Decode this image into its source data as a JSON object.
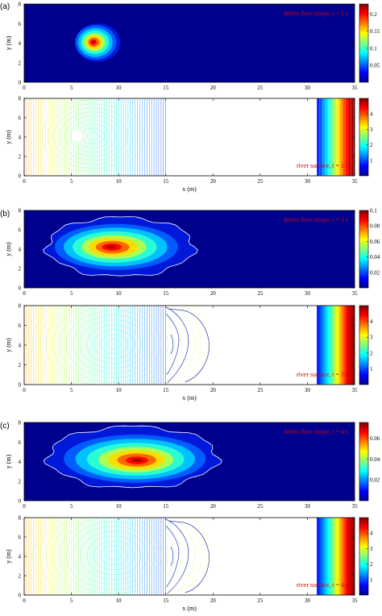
{
  "chart_data": [
    {
      "panel": "(a)",
      "type": "heatmap",
      "annotation": "debris flow shape, t = 1 s",
      "xlabel": "",
      "ylabel": "y (m)",
      "xlim": [
        0,
        35
      ],
      "ylim": [
        0,
        8
      ],
      "xticks": [
        "0",
        "5",
        "10",
        "15",
        "20",
        "25",
        "30",
        "35"
      ],
      "yticks": [
        "0",
        "2",
        "4",
        "6",
        "8"
      ],
      "colorbar": {
        "min": 0,
        "max": 0.23,
        "ticks": [
          "0.2",
          "0.15",
          "0.1",
          "0.05"
        ],
        "tick_values": [
          0.2,
          0.15,
          0.1,
          0.05
        ]
      },
      "blob": {
        "cx": 7.3,
        "cy": 4.1,
        "peak": 0.23,
        "outline_x": [
          5.4,
          10.2
        ],
        "outline_y": [
          2.1,
          6.0
        ]
      }
    },
    {
      "panel": "(a)",
      "type": "contour",
      "annotation": "river surface, t = 1 s",
      "xlabel": "x (m)",
      "ylabel": "y (m)",
      "xlim": [
        0,
        35
      ],
      "ylim": [
        0,
        8
      ],
      "xticks": [
        "0",
        "5",
        "10",
        "15",
        "20",
        "25",
        "30",
        "35"
      ],
      "yticks": [
        "0",
        "2",
        "4",
        "6",
        "8"
      ],
      "colorbar": {
        "min": 0,
        "max": 5,
        "ticks": [
          "4",
          "3",
          "2",
          "1"
        ],
        "tick_values": [
          4,
          3,
          2,
          1
        ]
      },
      "wet_region_x": [
        0,
        15
      ],
      "uniform_region_x": [
        31,
        35
      ]
    },
    {
      "panel": "(b)",
      "type": "heatmap",
      "annotation": "debris flow shape, t = 3 s",
      "xlabel": "",
      "ylabel": "y (m)",
      "xlim": [
        0,
        35
      ],
      "ylim": [
        0,
        8
      ],
      "xticks": [
        "0",
        "5",
        "10",
        "15",
        "20",
        "25",
        "30",
        "35"
      ],
      "yticks": [
        "0",
        "2",
        "4",
        "6",
        "8"
      ],
      "colorbar": {
        "min": 0,
        "max": 0.1,
        "ticks": [
          "0.1",
          "0.08",
          "0.06",
          "0.04",
          "0.02"
        ],
        "tick_values": [
          0.1,
          0.08,
          0.06,
          0.04,
          0.02
        ]
      },
      "blob": {
        "cx": 9.2,
        "cy": 4.2,
        "peak": 0.1,
        "outline_x": [
          2.4,
          18.0
        ],
        "outline_y": [
          1.2,
          7.3
        ]
      }
    },
    {
      "panel": "(b)",
      "type": "contour",
      "annotation": "river surface, t = 3 s",
      "xlabel": "x (m)",
      "ylabel": "y (m)",
      "xlim": [
        0,
        35
      ],
      "ylim": [
        0,
        8
      ],
      "xticks": [
        "0",
        "5",
        "10",
        "15",
        "20",
        "25",
        "30",
        "35"
      ],
      "yticks": [
        "0",
        "2",
        "4",
        "6",
        "8"
      ],
      "colorbar": {
        "min": 0,
        "max": 5,
        "ticks": [
          "4",
          "3",
          "2",
          "1"
        ],
        "tick_values": [
          4,
          3,
          2,
          1
        ]
      },
      "wet_region_x": [
        0,
        15
      ],
      "uniform_region_x": [
        31,
        35
      ]
    },
    {
      "panel": "(c)",
      "type": "heatmap",
      "annotation": "debris flow shape, t = 4 s",
      "xlabel": "",
      "ylabel": "y (m)",
      "xlim": [
        0,
        35
      ],
      "ylim": [
        0,
        8
      ],
      "xticks": [
        "0",
        "5",
        "10",
        "15",
        "20",
        "25",
        "30",
        "35"
      ],
      "yticks": [
        "0",
        "2",
        "4",
        "6",
        "8"
      ],
      "colorbar": {
        "min": 0,
        "max": 0.075,
        "ticks": [
          "0.06",
          "0.04",
          "0.02"
        ],
        "tick_values": [
          0.06,
          0.04,
          0.02
        ]
      },
      "blob": {
        "cx": 12.0,
        "cy": 4.1,
        "peak": 0.075,
        "outline_x": [
          2.5,
          20.5
        ],
        "outline_y": [
          1.3,
          7.6
        ]
      }
    },
    {
      "panel": "(c)",
      "type": "contour",
      "annotation": "river surface, t = 4 s",
      "xlabel": "x (m)",
      "ylabel": "y (m)",
      "xlim": [
        0,
        35
      ],
      "ylim": [
        0,
        8
      ],
      "xticks": [
        "0",
        "5",
        "10",
        "15",
        "20",
        "25",
        "30",
        "35"
      ],
      "yticks": [
        "0",
        "2",
        "4",
        "6",
        "8"
      ],
      "colorbar": {
        "min": 0,
        "max": 5,
        "ticks": [
          "4",
          "3",
          "2",
          "1"
        ],
        "tick_values": [
          4,
          3,
          2,
          1
        ]
      },
      "wet_region_x": [
        0,
        15
      ],
      "uniform_region_x": [
        31,
        35
      ]
    }
  ],
  "colors": {
    "background": "#00008f",
    "annotation": "#d40000"
  }
}
